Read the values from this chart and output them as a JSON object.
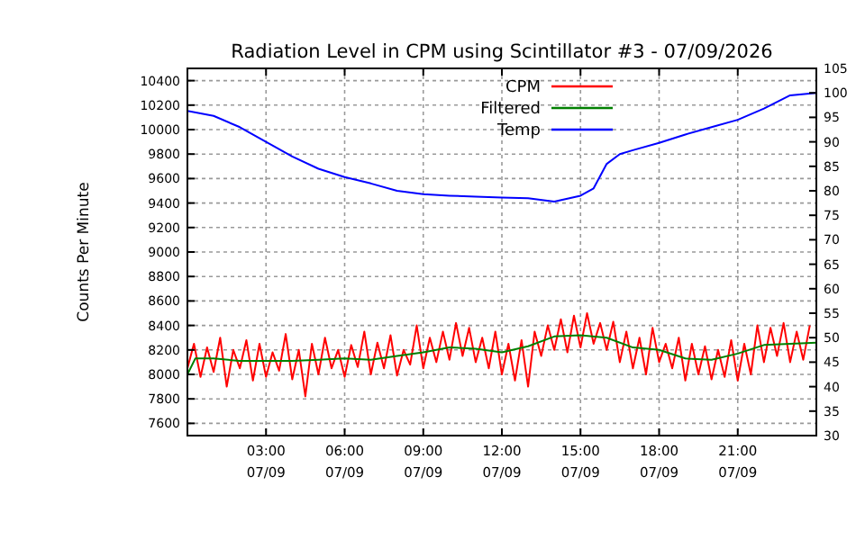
{
  "chart_data": {
    "type": "line",
    "title": "Radiation Level in CPM using Scintillator #3 - 07/09/2026",
    "ylabel": "Counts Per Minute",
    "xlim": [
      "2026-07-09T00:00",
      "2026-07-10T00:00"
    ],
    "xticks": [
      {
        "value": "2026-07-09T03:00",
        "label": "03:00\n07/09"
      },
      {
        "value": "2026-07-09T06:00",
        "label": "06:00\n07/09"
      },
      {
        "value": "2026-07-09T09:00",
        "label": "09:00\n07/09"
      },
      {
        "value": "2026-07-09T12:00",
        "label": "12:00\n07/09"
      },
      {
        "value": "2026-07-09T15:00",
        "label": "15:00\n07/09"
      },
      {
        "value": "2026-07-09T18:00",
        "label": "18:00\n07/09"
      },
      {
        "value": "2026-07-09T21:00",
        "label": "21:00\n07/09"
      }
    ],
    "ylim": [
      7500,
      10500
    ],
    "yticks": [
      7600,
      7800,
      8000,
      8200,
      8400,
      8600,
      8800,
      9000,
      9200,
      9400,
      9600,
      9800,
      10000,
      10200,
      10400
    ],
    "y2lim": [
      30,
      105
    ],
    "y2ticks": [
      30,
      35,
      40,
      45,
      50,
      55,
      60,
      65,
      70,
      75,
      80,
      85,
      90,
      95,
      100,
      105
    ],
    "grid": true,
    "legend": "top",
    "line_style": "solid",
    "marker": "none",
    "series": [
      {
        "name": "CPM",
        "color": "#ff0000",
        "x": [
          "2026-07-09T00:00",
          "2026-07-09T00:15",
          "2026-07-09T00:30",
          "2026-07-09T00:45",
          "2026-07-09T01:00",
          "2026-07-09T01:15",
          "2026-07-09T01:30",
          "2026-07-09T01:45",
          "2026-07-09T02:00",
          "2026-07-09T02:15",
          "2026-07-09T02:30",
          "2026-07-09T02:45",
          "2026-07-09T03:00",
          "2026-07-09T03:15",
          "2026-07-09T03:30",
          "2026-07-09T03:45",
          "2026-07-09T04:00",
          "2026-07-09T04:15",
          "2026-07-09T04:30",
          "2026-07-09T04:45",
          "2026-07-09T05:00",
          "2026-07-09T05:15",
          "2026-07-09T05:30",
          "2026-07-09T05:45",
          "2026-07-09T06:00",
          "2026-07-09T06:15",
          "2026-07-09T06:30",
          "2026-07-09T06:45",
          "2026-07-09T07:00",
          "2026-07-09T07:15",
          "2026-07-09T07:30",
          "2026-07-09T07:45",
          "2026-07-09T08:00",
          "2026-07-09T08:15",
          "2026-07-09T08:30",
          "2026-07-09T08:45",
          "2026-07-09T09:00",
          "2026-07-09T09:15",
          "2026-07-09T09:30",
          "2026-07-09T09:45",
          "2026-07-09T10:00",
          "2026-07-09T10:15",
          "2026-07-09T10:30",
          "2026-07-09T10:45",
          "2026-07-09T11:00",
          "2026-07-09T11:15",
          "2026-07-09T11:30",
          "2026-07-09T11:45",
          "2026-07-09T12:00",
          "2026-07-09T12:15",
          "2026-07-09T12:30",
          "2026-07-09T12:45",
          "2026-07-09T13:00",
          "2026-07-09T13:15",
          "2026-07-09T13:30",
          "2026-07-09T13:45",
          "2026-07-09T14:00",
          "2026-07-09T14:15",
          "2026-07-09T14:30",
          "2026-07-09T14:45",
          "2026-07-09T15:00",
          "2026-07-09T15:15",
          "2026-07-09T15:30",
          "2026-07-09T15:45",
          "2026-07-09T16:00",
          "2026-07-09T16:15",
          "2026-07-09T16:30",
          "2026-07-09T16:45",
          "2026-07-09T17:00",
          "2026-07-09T17:15",
          "2026-07-09T17:30",
          "2026-07-09T17:45",
          "2026-07-09T18:00",
          "2026-07-09T18:15",
          "2026-07-09T18:30",
          "2026-07-09T18:45",
          "2026-07-09T19:00",
          "2026-07-09T19:15",
          "2026-07-09T19:30",
          "2026-07-09T19:45",
          "2026-07-09T20:00",
          "2026-07-09T20:15",
          "2026-07-09T20:30",
          "2026-07-09T20:45",
          "2026-07-09T21:00",
          "2026-07-09T21:15",
          "2026-07-09T21:30",
          "2026-07-09T21:45",
          "2026-07-09T22:00",
          "2026-07-09T22:15",
          "2026-07-09T22:30",
          "2026-07-09T22:45",
          "2026-07-09T23:00",
          "2026-07-09T23:15",
          "2026-07-09T23:30",
          "2026-07-09T23:45"
        ],
        "values": [
          8050,
          8250,
          7980,
          8220,
          8020,
          8300,
          7900,
          8200,
          8050,
          8280,
          7950,
          8250,
          7980,
          8180,
          8030,
          8330,
          7960,
          8200,
          7820,
          8250,
          8000,
          8300,
          8050,
          8200,
          7980,
          8240,
          8060,
          8350,
          8000,
          8260,
          8050,
          8320,
          7990,
          8200,
          8080,
          8400,
          8050,
          8300,
          8100,
          8350,
          8120,
          8420,
          8150,
          8380,
          8100,
          8300,
          8050,
          8350,
          8000,
          8250,
          7950,
          8280,
          7900,
          8350,
          8150,
          8400,
          8200,
          8450,
          8180,
          8480,
          8220,
          8500,
          8250,
          8420,
          8200,
          8430,
          8100,
          8350,
          8050,
          8300,
          8000,
          8380,
          8100,
          8250,
          8050,
          8300,
          7950,
          8250,
          8000,
          8230,
          7960,
          8200,
          7980,
          8280,
          7950,
          8250,
          8000,
          8400,
          8100,
          8380,
          8150,
          8420,
          8100,
          8350,
          8120,
          8400
        ]
      },
      {
        "name": "Filtered",
        "color": "#008000",
        "x": [
          "2026-07-09T00:00",
          "2026-07-09T00:18",
          "2026-07-09T01:00",
          "2026-07-09T02:00",
          "2026-07-09T03:00",
          "2026-07-09T04:00",
          "2026-07-09T05:00",
          "2026-07-09T06:00",
          "2026-07-09T07:00",
          "2026-07-09T08:00",
          "2026-07-09T09:00",
          "2026-07-09T10:00",
          "2026-07-09T11:00",
          "2026-07-09T12:00",
          "2026-07-09T13:00",
          "2026-07-09T14:00",
          "2026-07-09T15:00",
          "2026-07-09T16:00",
          "2026-07-09T17:00",
          "2026-07-09T18:00",
          "2026-07-09T19:00",
          "2026-07-09T20:00",
          "2026-07-09T21:00",
          "2026-07-09T22:00",
          "2026-07-09T23:00",
          "2026-07-10T00:00"
        ],
        "values": [
          8000,
          8130,
          8130,
          8110,
          8110,
          8110,
          8120,
          8130,
          8120,
          8150,
          8180,
          8220,
          8210,
          8180,
          8230,
          8310,
          8320,
          8300,
          8220,
          8200,
          8130,
          8120,
          8170,
          8240,
          8250,
          8260
        ]
      },
      {
        "name": "Temp",
        "color": "#0000ff",
        "axis": "y2",
        "x": [
          "2026-07-09T00:00",
          "2026-07-09T01:00",
          "2026-07-09T02:00",
          "2026-07-09T03:00",
          "2026-07-09T04:00",
          "2026-07-09T05:00",
          "2026-07-09T06:00",
          "2026-07-09T07:00",
          "2026-07-09T08:00",
          "2026-07-09T09:00",
          "2026-07-09T10:00",
          "2026-07-09T11:00",
          "2026-07-09T12:00",
          "2026-07-09T13:00",
          "2026-07-09T14:00",
          "2026-07-09T15:00",
          "2026-07-09T15:30",
          "2026-07-09T16:00",
          "2026-07-09T16:30",
          "2026-07-09T17:00",
          "2026-07-09T18:00",
          "2026-07-09T19:00",
          "2026-07-09T20:00",
          "2026-07-09T21:00",
          "2026-07-09T22:00",
          "2026-07-09T23:00",
          "2026-07-10T00:00"
        ],
        "values": [
          96.3,
          95.3,
          93,
          90,
          87,
          84.5,
          82.8,
          81.5,
          80,
          79.3,
          79,
          78.8,
          78.6,
          78.5,
          77.8,
          79,
          80.5,
          85.5,
          87.5,
          88.3,
          89.8,
          91.5,
          93,
          94.5,
          96.8,
          99.5,
          100
        ]
      }
    ]
  }
}
